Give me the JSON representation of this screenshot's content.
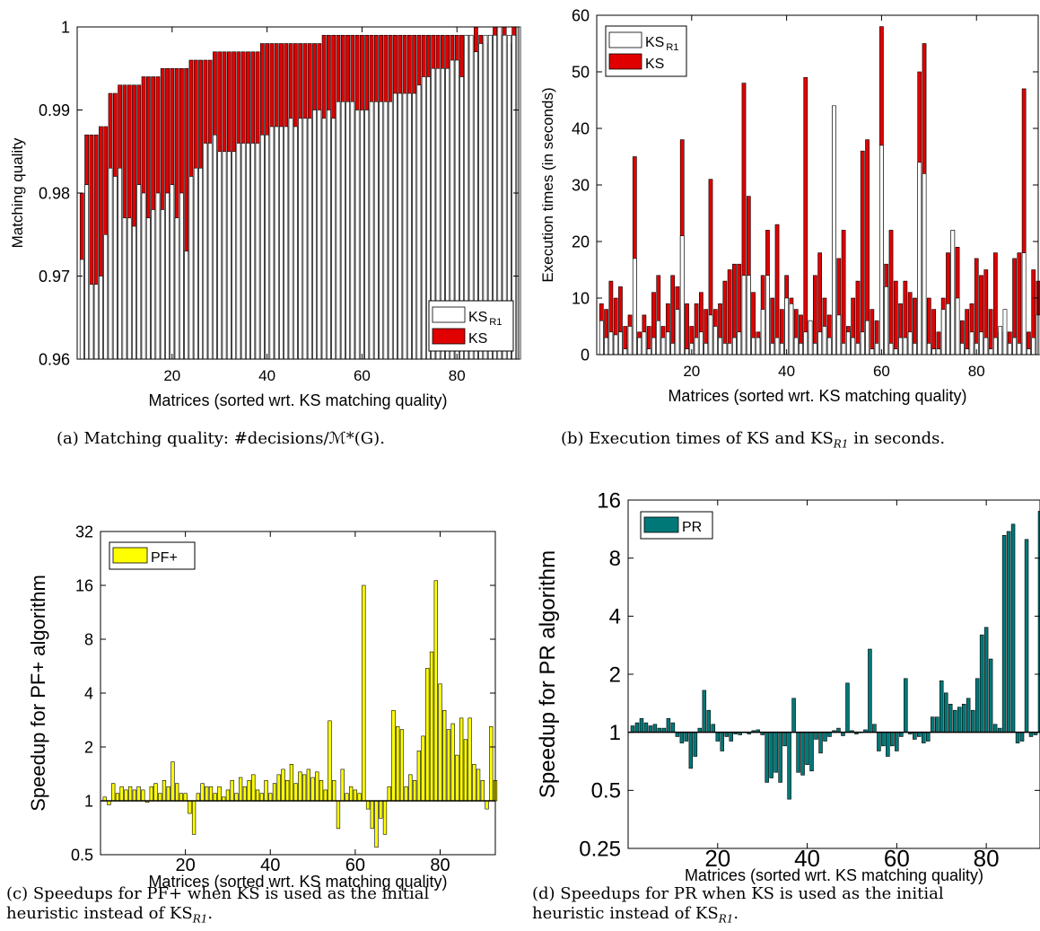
{
  "charts": {
    "a": {
      "caption": "(a) Matching quality: #decisions/ℳ*(G).",
      "chart_data": {
        "type": "bar",
        "xlabel": "Matrices (sorted wrt. KS matching quality)",
        "ylabel": "Matching quality",
        "xlim": [
          0,
          93
        ],
        "ylim": [
          0.96,
          1.0
        ],
        "xticks": [
          20,
          40,
          60,
          80
        ],
        "yticks": [
          0.96,
          0.97,
          0.98,
          0.99,
          1
        ],
        "ytick_labels": [
          "0.96",
          "0.97",
          "0.98",
          "0.99",
          "1"
        ],
        "legend": "bottom-right",
        "series": [
          {
            "name": "KS_R1",
            "legend_main": "KS",
            "legend_sub": "R1",
            "color": "#ffffff",
            "values": [
              0.972,
              0.981,
              0.969,
              0.969,
              0.97,
              0.975,
              0.983,
              0.982,
              0.983,
              0.977,
              0.977,
              0.976,
              0.981,
              0.98,
              0.977,
              0.978,
              0.98,
              0.978,
              0.98,
              0.981,
              0.977,
              0.98,
              0.973,
              0.982,
              0.983,
              0.983,
              0.986,
              0.986,
              0.987,
              0.985,
              0.985,
              0.985,
              0.985,
              0.986,
              0.986,
              0.986,
              0.986,
              0.986,
              0.987,
              0.987,
              0.988,
              0.988,
              0.988,
              0.988,
              0.989,
              0.988,
              0.989,
              0.989,
              0.989,
              0.99,
              0.99,
              0.989,
              0.99,
              0.989,
              0.991,
              0.991,
              0.991,
              0.991,
              0.99,
              0.99,
              0.99,
              0.991,
              0.991,
              0.991,
              0.991,
              0.991,
              0.992,
              0.992,
              0.992,
              0.992,
              0.992,
              0.993,
              0.994,
              0.994,
              0.995,
              0.995,
              0.995,
              0.995,
              0.996,
              0.996,
              0.994,
              0.999,
              0.999,
              0.997,
              0.998,
              0.999,
              0.999,
              0.999,
              1.0,
              0.999,
              0.999,
              0.999,
              1.0
            ]
          },
          {
            "name": "KS",
            "legend_main": "KS",
            "legend_sub": "",
            "color": "#e00000",
            "values": [
              0.98,
              0.987,
              0.987,
              0.987,
              0.988,
              0.988,
              0.992,
              0.992,
              0.993,
              0.993,
              0.993,
              0.993,
              0.993,
              0.994,
              0.994,
              0.994,
              0.994,
              0.995,
              0.995,
              0.995,
              0.995,
              0.995,
              0.995,
              0.996,
              0.996,
              0.996,
              0.996,
              0.996,
              0.997,
              0.997,
              0.997,
              0.997,
              0.997,
              0.997,
              0.997,
              0.997,
              0.997,
              0.997,
              0.998,
              0.998,
              0.998,
              0.998,
              0.998,
              0.998,
              0.998,
              0.998,
              0.998,
              0.998,
              0.998,
              0.998,
              0.998,
              0.999,
              0.999,
              0.999,
              0.999,
              0.999,
              0.999,
              0.999,
              0.999,
              0.999,
              0.999,
              0.999,
              0.999,
              0.999,
              0.999,
              0.999,
              0.999,
              0.999,
              0.999,
              0.999,
              0.999,
              0.999,
              0.999,
              0.999,
              0.999,
              0.999,
              0.999,
              0.999,
              0.999,
              0.999,
              0.999,
              0.999,
              0.999,
              1.0,
              0.999,
              0.998,
              0.999,
              1.0,
              0.999,
              1.0,
              0.998,
              1.0,
              1.0
            ]
          }
        ]
      }
    },
    "b": {
      "caption": "(b) Execution times of KS and KS_R1 in seconds.",
      "caption_main": "(b) Execution times of KS and KS",
      "caption_sub": "R1",
      "caption_tail": " in seconds.",
      "chart_data": {
        "type": "bar",
        "xlabel": "Matrices (sorted wrt. KS matching quality)",
        "ylabel": "Execution times (in seconds)",
        "xlim": [
          0,
          93
        ],
        "ylim": [
          0,
          60
        ],
        "xticks": [
          20,
          40,
          60,
          80
        ],
        "yticks": [
          0,
          10,
          20,
          30,
          40,
          50,
          60
        ],
        "legend": "top-left",
        "series": [
          {
            "name": "KS_R1",
            "legend_main": "KS",
            "legend_sub": "R1",
            "color": "#ffffff",
            "values": [
              6,
              3,
              4,
              3.5,
              4,
              1,
              5,
              17,
              3,
              4,
              1,
              3,
              6,
              3,
              4,
              2,
              8,
              21,
              1,
              2,
              3,
              4,
              2,
              7,
              5,
              3,
              2,
              2,
              3,
              4,
              14,
              14,
              3,
              3,
              8,
              14,
              2,
              3,
              2,
              10,
              9,
              3,
              2,
              4,
              6,
              2,
              4,
              5,
              3,
              44,
              7,
              2,
              4,
              3,
              2,
              4,
              6,
              1,
              2,
              37,
              12,
              2,
              1,
              3,
              3,
              4,
              2,
              34,
              32,
              2,
              1,
              1,
              8,
              9,
              22,
              10,
              2,
              1,
              4,
              2,
              4,
              3,
              1,
              3,
              5,
              8,
              2,
              3,
              2,
              18,
              1,
              3,
              7
            ]
          },
          {
            "name": "KS",
            "legend_main": "KS",
            "legend_sub": "",
            "color": "#e00000",
            "values": [
              9,
              8,
              13,
              10,
              12,
              5,
              7,
              35,
              4,
              7,
              5,
              11,
              14,
              5,
              9,
              14,
              12,
              38,
              9,
              5,
              9,
              11,
              8,
              31,
              8,
              9,
              13,
              15,
              16,
              16,
              48,
              28,
              11,
              4,
              14,
              22,
              10,
              23,
              8,
              14,
              10,
              8,
              7,
              49,
              6,
              14,
              18,
              10,
              7,
              44,
              17,
              22,
              5,
              10,
              13,
              36,
              38,
              8,
              6,
              58,
              16,
              22,
              13,
              9,
              13,
              11,
              10,
              50,
              55,
              10,
              8,
              4,
              10,
              18,
              22,
              19,
              6,
              8,
              9,
              17,
              14,
              15,
              8,
              18,
              4,
              4,
              4,
              17,
              18,
              47,
              4,
              15,
              13
            ]
          }
        ]
      }
    },
    "c": {
      "caption_line1": "(c) Speedups for PF+ when KS is used as the initial",
      "caption_line2_main": "heuristic instead of KS",
      "caption_line2_sub": "R1",
      "caption_line2_tail": ".",
      "chart_data": {
        "type": "bar",
        "xlabel": "Matrices (sorted wrt. KS matching quality)",
        "ylabel": "Speedup for PF+ algorithm",
        "yscale": "log2",
        "xlim": [
          0,
          93
        ],
        "ylim": [
          0.5,
          32
        ],
        "baseline": 1,
        "xticks": [
          20,
          40,
          60,
          80
        ],
        "yticks": [
          0.5,
          1,
          2,
          4,
          8,
          16,
          32
        ],
        "ytick_labels": [
          "0.5",
          "1",
          "2",
          "4",
          "8",
          "16",
          "32"
        ],
        "legend": "top-left",
        "series": [
          {
            "name": "PF+",
            "color": "#ffff00",
            "values": [
              1.05,
              0.95,
              1.25,
              1.1,
              1.2,
              1.15,
              1.2,
              1.15,
              1.2,
              1.15,
              0.98,
              1.2,
              1.25,
              1.1,
              1.3,
              1.2,
              1.65,
              1.25,
              1.1,
              1.1,
              0.85,
              0.65,
              1.1,
              1.25,
              1.2,
              1.2,
              1.1,
              1.2,
              1.05,
              1.15,
              1.3,
              1.1,
              1.35,
              1.2,
              1.3,
              1.4,
              1.15,
              1.1,
              1.3,
              1.1,
              1.25,
              1.4,
              1.5,
              1.3,
              1.6,
              1.25,
              1.45,
              1.4,
              1.5,
              1.35,
              1.45,
              1.3,
              1.15,
              2.8,
              1.3,
              0.7,
              1.5,
              1.1,
              1.2,
              1.15,
              1.1,
              16,
              0.9,
              0.7,
              0.55,
              0.8,
              0.65,
              1.2,
              3.2,
              2.6,
              2.5,
              1.2,
              1.4,
              1.3,
              1.9,
              2.3,
              5.5,
              6.8,
              17,
              4.5,
              3.2,
              2.5,
              2.7,
              1.8,
              2.9,
              2.2,
              2.9,
              1.6,
              1.5,
              1.3,
              0.9,
              2.6,
              1.3
            ]
          }
        ]
      }
    },
    "d": {
      "caption_line1": "(d) Speedups for PR when KS is used as the initial",
      "caption_line2_main": "heuristic instead of KS",
      "caption_line2_sub": "R1",
      "caption_line2_tail": ".",
      "chart_data": {
        "type": "bar",
        "xlabel": "Matrices (sorted wrt. KS matching quality)",
        "ylabel": "Speedup for PR algorithm",
        "yscale": "log2",
        "xlim": [
          0,
          92
        ],
        "ylim": [
          0.25,
          16
        ],
        "baseline": 1,
        "xticks": [
          20,
          40,
          60,
          80
        ],
        "yticks": [
          0.25,
          0.5,
          1,
          2,
          4,
          8,
          16
        ],
        "ytick_labels": [
          "0.25",
          "0.5",
          "1",
          "2",
          "4",
          "8",
          "16"
        ],
        "legend": "top-left",
        "series": [
          {
            "name": "PR",
            "color": "#007878",
            "values": [
              1.08,
              1.12,
              1.18,
              1.12,
              1.08,
              1.1,
              1.05,
              1.05,
              1.18,
              1.12,
              0.95,
              0.88,
              0.9,
              0.65,
              0.75,
              1.05,
              1.65,
              1.3,
              1.1,
              0.9,
              0.8,
              0.95,
              0.9,
              0.98,
              0.97,
              1.0,
              0.98,
              1.02,
              1.03,
              0.97,
              0.55,
              0.58,
              0.62,
              0.55,
              0.85,
              0.45,
              1.5,
              0.62,
              0.6,
              0.68,
              0.63,
              0.92,
              0.78,
              0.9,
              0.95,
              1.02,
              1.05,
              0.96,
              1.8,
              1.02,
              0.98,
              1.0,
              1.03,
              2.7,
              1.1,
              0.8,
              0.85,
              0.75,
              0.85,
              0.8,
              0.95,
              1.9,
              0.98,
              0.92,
              0.95,
              0.88,
              0.9,
              1.2,
              1.2,
              1.85,
              1.6,
              1.4,
              1.3,
              1.35,
              1.4,
              1.5,
              1.3,
              1.9,
              3.2,
              3.5,
              2.4,
              1.1,
              1.05,
              10.5,
              11,
              12,
              0.88,
              0.9,
              10,
              0.95,
              0.97,
              14
            ]
          }
        ]
      }
    }
  }
}
